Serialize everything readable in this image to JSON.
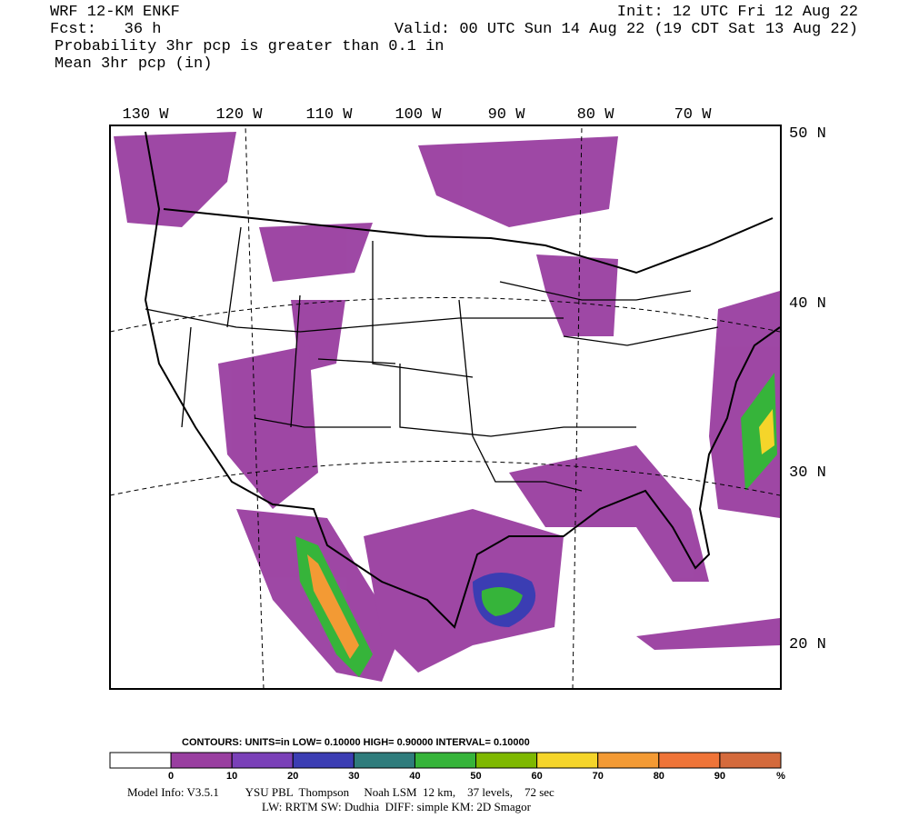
{
  "header": {
    "model": "WRF 12-KM ENKF",
    "init": "Init: 12 UTC Fri 12 Aug 22",
    "forecast": "Fcst:   36 h",
    "valid": "Valid: 00 UTC Sun 14 Aug 22 (19 CDT Sat 13 Aug 22)",
    "field1": "Probability 3hr pcp is greater than 0.1 in",
    "field2": "Mean 3hr pcp (in)"
  },
  "map": {
    "lon_labels": [
      "130 W",
      "120 W",
      "110 W",
      "100 W",
      "90 W",
      "80 W",
      "70 W"
    ],
    "lat_labels": [
      "50 N",
      "40 N",
      "30 N",
      "20 N"
    ]
  },
  "colorbar": {
    "contours": "CONTOURS:  UNITS=in  LOW= 0.10000      HIGH= 0.90000      INTERVAL=  0.10000",
    "ticks": [
      0,
      10,
      20,
      30,
      40,
      50,
      60,
      70,
      80,
      90
    ],
    "unit": "%",
    "colors": [
      "#ffffff",
      "#993ea0",
      "#7a40b8",
      "#3b3db3",
      "#2f7c7c",
      "#36b43a",
      "#7eb800",
      "#f5d52a",
      "#f39a34",
      "#ef7438",
      "#d46a3c"
    ]
  },
  "footer": {
    "line1": "Model Info: V3.5.1         YSU PBL  Thompson     Noah LSM  12 km,    37 levels,    72 sec",
    "line2": "LW: RRTM SW: Dudhia  DIFF: simple KM: 2D Smagor"
  }
}
